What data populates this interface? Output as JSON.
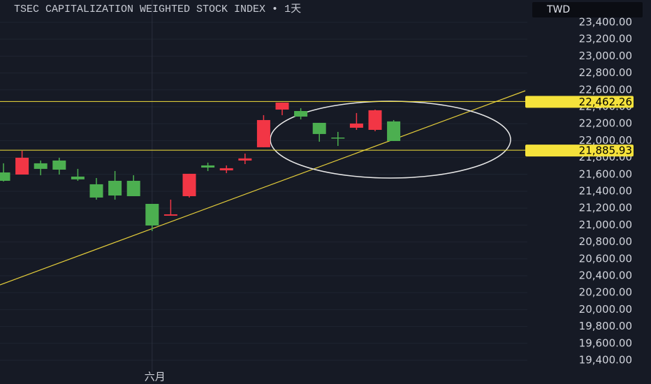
{
  "chart_data": {
    "type": "candlestick",
    "title": "TSEC CAPITALIZATION WEIGHTED STOCK INDEX  •  1天",
    "currency": "TWD",
    "categories": [
      null,
      null,
      null,
      null,
      null,
      null,
      null,
      null,
      "六月",
      null,
      null,
      null,
      null,
      null,
      null,
      null,
      null,
      null,
      null,
      null,
      null,
      null
    ],
    "open": [
      21623,
      21598,
      21731,
      21764,
      21574,
      21483,
      21524,
      21524,
      21251,
      21111,
      21342,
      21706,
      21648,
      21764,
      21921,
      22367,
      22350,
      22210,
      22036,
      22152,
      22127,
      22227
    ],
    "high": [
      21731,
      21879,
      21764,
      21797,
      21665,
      21557,
      21640,
      21590,
      21251,
      21301,
      21607,
      21739,
      21706,
      21846,
      22301,
      22450,
      22384,
      22210,
      22103,
      22326,
      22367,
      22243
    ],
    "low": [
      21516,
      21598,
      21590,
      21598,
      21524,
      21301,
      21301,
      21342,
      20929,
      21111,
      21326,
      21640,
      21615,
      21722,
      21921,
      22301,
      22251,
      21987,
      21937,
      22127,
      22111,
      21995
    ],
    "close": [
      21524,
      21797,
      21665,
      21656,
      21541,
      21326,
      21350,
      21342,
      20995,
      21127,
      21607,
      21681,
      21673,
      21789,
      22243,
      22450,
      22284,
      22078,
      22028,
      22202,
      22359,
      21995
    ],
    "up_color": "#f23645",
    "down_color": "#4caf50",
    "ylim": [
      19119,
      23664
    ],
    "yticks": [
      {
        "value": 19400,
        "label": "19,400.00"
      },
      {
        "value": 19600,
        "label": "19,600.00"
      },
      {
        "value": 19800,
        "label": "19,800.00"
      },
      {
        "value": 20000,
        "label": "20,000.00"
      },
      {
        "value": 20200,
        "label": "20,200.00"
      },
      {
        "value": 20400,
        "label": "20,400.00"
      },
      {
        "value": 20600,
        "label": "20,600.00"
      },
      {
        "value": 20800,
        "label": "20,800.00"
      },
      {
        "value": 21000,
        "label": "21,000.00"
      },
      {
        "value": 21200,
        "label": "21,200.00"
      },
      {
        "value": 21400,
        "label": "21,400.00"
      },
      {
        "value": 21600,
        "label": "21,600.00"
      },
      {
        "value": 21800,
        "label": "21,800.00"
      },
      {
        "value": 22000,
        "label": "22,000.00"
      },
      {
        "value": 22200,
        "label": "22,200.00"
      },
      {
        "value": 22400,
        "label": "22,400.00"
      },
      {
        "value": 22600,
        "label": "22,600.00"
      },
      {
        "value": 22800,
        "label": "22,800.00"
      },
      {
        "value": 23000,
        "label": "23,000.00"
      },
      {
        "value": 23200,
        "label": "23,200.00"
      },
      {
        "value": 23400,
        "label": "23,400.00"
      }
    ],
    "grid": true,
    "hlines": [
      {
        "value": 22462.26,
        "label": "22,462.26"
      },
      {
        "value": 21885.93,
        "label": "21,885.93"
      }
    ],
    "hline_color": "#f5e23b"
  }
}
